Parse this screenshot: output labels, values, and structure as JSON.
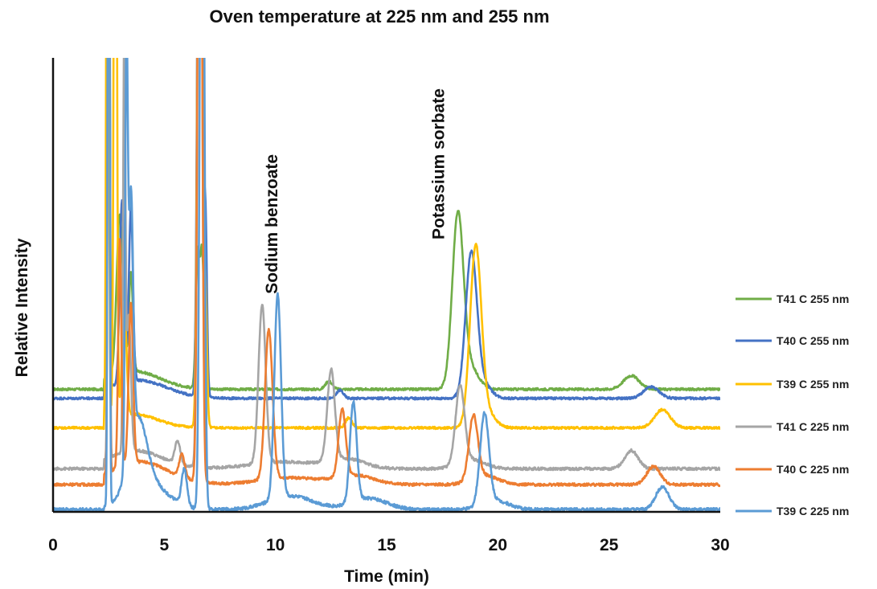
{
  "chart_data": {
    "type": "line",
    "title": "Oven temperature at 225 nm and 255 nm",
    "xlabel": "Time (min)",
    "ylabel": "Relative Intensity",
    "xlim": [
      0,
      30
    ],
    "ylim": [
      0,
      100
    ],
    "x_ticks": [
      0,
      5,
      10,
      15,
      20,
      25,
      30
    ],
    "grid": false,
    "legend_position": "right",
    "annotations": [
      {
        "text": "Sodium benzoate",
        "x": 9.8,
        "y": 48
      },
      {
        "text": "Potassium sorbate",
        "x": 17.3,
        "y": 60
      }
    ],
    "series": [
      {
        "name": "T41 C 255 nm",
        "color": "#70ad47",
        "baseline": 27,
        "noise": 0.25,
        "peaks": [
          [
            2.5,
            0.04,
            200
          ],
          [
            3.0,
            0.14,
            35
          ],
          [
            3.5,
            0.09,
            22
          ],
          [
            3.6,
            1.2,
            4
          ],
          [
            6.7,
            0.09,
            30
          ],
          [
            6.5,
            0.08,
            28
          ],
          [
            12.4,
            0.15,
            1.8
          ],
          [
            18.2,
            0.25,
            37
          ],
          [
            18.7,
            0.4,
            5
          ],
          [
            26,
            0.35,
            3
          ]
        ]
      },
      {
        "name": "T40 C 255 nm",
        "color": "#4472c4",
        "baseline": 25,
        "noise": 0.25,
        "peaks": [
          [
            2.5,
            0.04,
            200
          ],
          [
            3.1,
            0.1,
            40
          ],
          [
            3.5,
            0.09,
            38
          ],
          [
            3.8,
            1.3,
            4
          ],
          [
            6.6,
            0.09,
            200
          ],
          [
            6.85,
            0.07,
            40
          ],
          [
            12.9,
            0.15,
            1.8
          ],
          [
            18.8,
            0.25,
            30
          ],
          [
            19.2,
            0.4,
            4
          ],
          [
            26.9,
            0.35,
            2.5
          ]
        ]
      },
      {
        "name": "T39 C 255 nm",
        "color": "#ffc000",
        "baseline": 18.5,
        "noise": 0.25,
        "peaks": [
          [
            2.45,
            0.05,
            200
          ],
          [
            2.8,
            0.06,
            200
          ],
          [
            3.2,
            0.1,
            25
          ],
          [
            3.6,
            1.1,
            3
          ],
          [
            6.6,
            0.09,
            200
          ],
          [
            6.85,
            0.07,
            30
          ],
          [
            13.3,
            0.15,
            2.2
          ],
          [
            19.0,
            0.25,
            38
          ],
          [
            19.4,
            0.4,
            4
          ],
          [
            27.4,
            0.35,
            4
          ]
        ]
      },
      {
        "name": "T41 C 225 nm",
        "color": "#a5a5a5",
        "baseline": 9.5,
        "noise": 0.3,
        "peaks": [
          [
            2.5,
            0.04,
            200
          ],
          [
            3.2,
            0.05,
            90
          ],
          [
            3.4,
            0.1,
            30
          ],
          [
            3.7,
            1.2,
            4
          ],
          [
            5.6,
            0.12,
            5
          ],
          [
            6.6,
            0.09,
            200
          ],
          [
            9.4,
            0.16,
            35
          ],
          [
            10.4,
            1.5,
            1.5
          ],
          [
            12.5,
            0.17,
            20
          ],
          [
            13.2,
            0.8,
            2
          ],
          [
            18.3,
            0.2,
            17
          ],
          [
            18.8,
            0.6,
            2
          ],
          [
            26,
            0.3,
            4
          ]
        ]
      },
      {
        "name": "T40 C 225 nm",
        "color": "#ed7d31",
        "baseline": 6,
        "noise": 0.3,
        "peaks": [
          [
            2.5,
            0.04,
            200
          ],
          [
            3.0,
            0.07,
            50
          ],
          [
            3.5,
            0.1,
            35
          ],
          [
            3.9,
            1.3,
            5
          ],
          [
            5.8,
            0.12,
            5
          ],
          [
            6.6,
            0.09,
            200
          ],
          [
            9.7,
            0.17,
            33
          ],
          [
            10.8,
            1.5,
            1.5
          ],
          [
            13.0,
            0.16,
            15
          ],
          [
            13.7,
            0.8,
            1.8
          ],
          [
            18.9,
            0.2,
            14
          ],
          [
            19.4,
            0.6,
            2
          ],
          [
            27,
            0.3,
            4
          ]
        ]
      },
      {
        "name": "T39 C 225 nm",
        "color": "#5b9bd5",
        "baseline": 0.5,
        "noise": 0.35,
        "peaks": [
          [
            2.5,
            0.04,
            200
          ],
          [
            3.3,
            0.06,
            90
          ],
          [
            3.5,
            0.1,
            55
          ],
          [
            3.8,
            0.4,
            15
          ],
          [
            4.2,
            0.9,
            6
          ],
          [
            5.9,
            0.12,
            8
          ],
          [
            6.7,
            0.09,
            200
          ],
          [
            10.1,
            0.15,
            45
          ],
          [
            10.7,
            1.0,
            3
          ],
          [
            13.5,
            0.15,
            22
          ],
          [
            14.2,
            0.8,
            2.5
          ],
          [
            19.4,
            0.2,
            20
          ],
          [
            19.9,
            0.6,
            2
          ],
          [
            27.4,
            0.3,
            5
          ]
        ]
      }
    ]
  }
}
